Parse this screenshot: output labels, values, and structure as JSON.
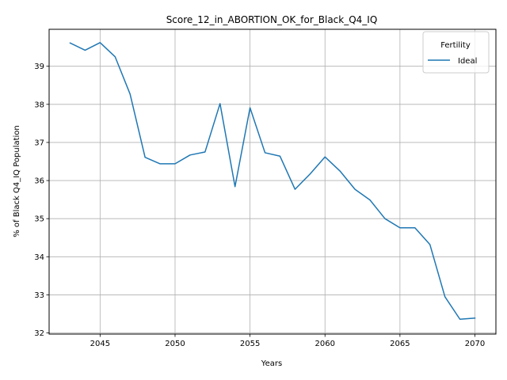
{
  "chart_data": {
    "type": "line",
    "title": "Score_12_in_ABORTION_OK_for_Black_Q4_IQ",
    "xlabel": "Years",
    "ylabel": "% of Black Q4_IQ Population",
    "xlim": [
      2041.6,
      2071.4
    ],
    "ylim": [
      31.97,
      39.97
    ],
    "xticks": [
      2045,
      2050,
      2055,
      2060,
      2065,
      2070
    ],
    "yticks": [
      32,
      33,
      34,
      35,
      36,
      37,
      38,
      39
    ],
    "grid": true,
    "legend": {
      "title": "Fertility",
      "placement": "top-right"
    },
    "series": [
      {
        "name": "Ideal",
        "color": "#1f77b4",
        "x": [
          2043,
          2044,
          2045,
          2046,
          2047,
          2048,
          2049,
          2050,
          2051,
          2052,
          2053,
          2054,
          2055,
          2056,
          2057,
          2058,
          2059,
          2060,
          2061,
          2062,
          2063,
          2064,
          2065,
          2066,
          2067,
          2068,
          2069,
          2070
        ],
        "y": [
          39.61,
          39.42,
          39.62,
          39.25,
          38.27,
          36.61,
          36.44,
          36.44,
          36.67,
          36.75,
          38.02,
          35.84,
          37.91,
          36.73,
          36.64,
          35.77,
          36.17,
          36.62,
          36.25,
          35.77,
          35.49,
          35.0,
          34.76,
          34.76,
          34.32,
          32.95,
          32.36,
          32.39
        ]
      }
    ]
  }
}
